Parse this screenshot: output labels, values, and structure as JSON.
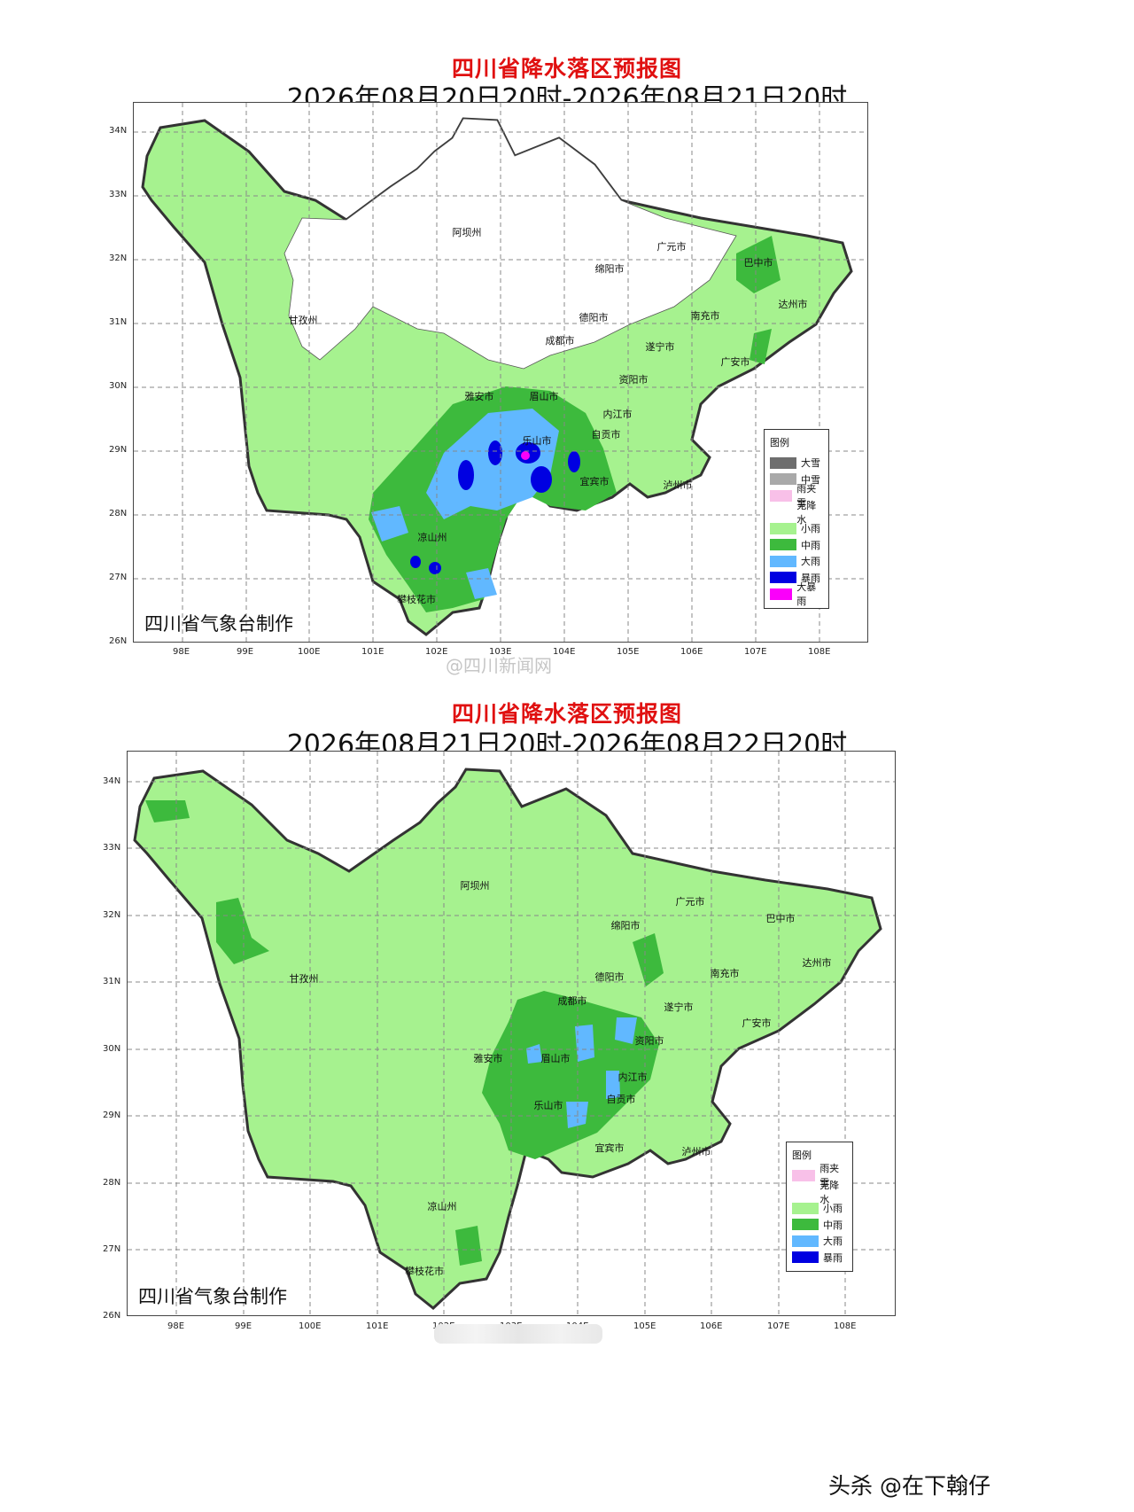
{
  "panels": [
    {
      "title": "四川省降水落区预报图",
      "date_range": "2026年08月20日20时-2026年08月21日20时",
      "producer": "四川省气象台制作",
      "lat_ticks": [
        "34N",
        "33N",
        "32N",
        "31N",
        "30N",
        "29N",
        "28N",
        "27N",
        "26N"
      ],
      "lon_ticks": [
        "98E",
        "99E",
        "100E",
        "101E",
        "102E",
        "103E",
        "104E",
        "105E",
        "106E",
        "107E",
        "108E"
      ],
      "cities": [
        "阿坝州",
        "广元市",
        "巴中市",
        "绵阳市",
        "甘孜州",
        "德阳市",
        "达州市",
        "南充市",
        "成都市",
        "遂宁市",
        "广安市",
        "资阳市",
        "雅安市",
        "眉山市",
        "内江市",
        "乐山市",
        "自贡市",
        "宜宾市",
        "泸州市",
        "凉山州",
        "攀枝花市"
      ],
      "legend": {
        "title": "图例",
        "items": [
          {
            "label": "大雪",
            "color": "#6e6e6e"
          },
          {
            "label": "中雪",
            "color": "#a9a9a9"
          },
          {
            "label": "雨夹雪",
            "color": "#f8c0e8"
          },
          {
            "label": "无降水",
            "color": "#ffffff"
          },
          {
            "label": "小雨",
            "color": "#a6f28f"
          },
          {
            "label": "中雨",
            "color": "#3dba3d"
          },
          {
            "label": "大雨",
            "color": "#61b8ff"
          },
          {
            "label": "暴雨",
            "color": "#0000e1"
          },
          {
            "label": "大暴雨",
            "color": "#fa00fa"
          }
        ]
      }
    },
    {
      "title": "四川省降水落区预报图",
      "date_range": "2026年08月21日20时-2026年08月22日20时",
      "producer": "四川省气象台制作",
      "lat_ticks": [
        "34N",
        "33N",
        "32N",
        "31N",
        "30N",
        "29N",
        "28N",
        "27N",
        "26N"
      ],
      "lon_ticks": [
        "98E",
        "99E",
        "100E",
        "101E",
        "102E",
        "103E",
        "104E",
        "105E",
        "106E",
        "107E",
        "108E"
      ],
      "cities": [
        "阿坝州",
        "广元市",
        "巴中市",
        "绵阳市",
        "甘孜州",
        "德阳市",
        "达州市",
        "南充市",
        "成都市",
        "遂宁市",
        "广安市",
        "资阳市",
        "雅安市",
        "眉山市",
        "内江市",
        "乐山市",
        "自贡市",
        "宜宾市",
        "泸州市",
        "凉山州",
        "攀枝花市"
      ],
      "legend": {
        "title": "图例",
        "items": [
          {
            "label": "雨夹雪",
            "color": "#f8c0e8"
          },
          {
            "label": "无降水",
            "color": "#ffffff"
          },
          {
            "label": "小雨",
            "color": "#a6f28f"
          },
          {
            "label": "中雨",
            "color": "#3dba3d"
          },
          {
            "label": "大雨",
            "color": "#61b8ff"
          },
          {
            "label": "暴雨",
            "color": "#0000e1"
          }
        ]
      }
    }
  ],
  "watermark": "@四川新闻网",
  "credit": "头杀 @在下翰仔",
  "colors": {
    "title_red": "#e01010",
    "light_rain": "#a6f28f",
    "moderate_rain": "#3dba3d",
    "heavy_rain": "#61b8ff",
    "rainstorm": "#0000e1",
    "heavy_rainstorm": "#fa00fa"
  }
}
